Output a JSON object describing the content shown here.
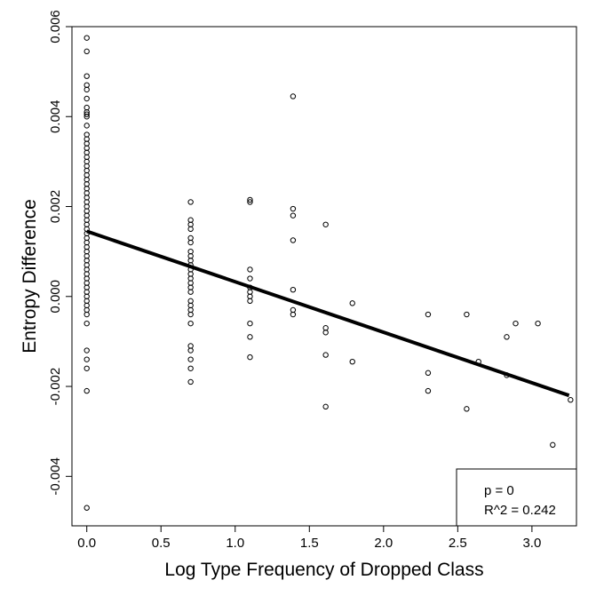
{
  "chart_data": {
    "type": "scatter",
    "title": "",
    "xlabel": "Log Type Frequency of Dropped Class",
    "ylabel": "Entropy Difference",
    "xlim": [
      -0.1,
      3.3
    ],
    "ylim": [
      -0.0051,
      0.006
    ],
    "x_ticks": [
      0.0,
      0.5,
      1.0,
      1.5,
      2.0,
      2.5,
      3.0
    ],
    "x_tick_labels": [
      "0.0",
      "0.5",
      "1.0",
      "1.5",
      "2.0",
      "2.5",
      "3.0"
    ],
    "y_ticks": [
      -0.004,
      -0.002,
      0.0,
      0.002,
      0.004,
      0.006
    ],
    "y_tick_labels": [
      "-0.004",
      "-0.002",
      "0.000",
      "0.002",
      "0.004",
      "0.006"
    ],
    "grid": false,
    "regression_line": {
      "x": [
        0.0,
        3.25
      ],
      "y": [
        0.00145,
        -0.0022
      ]
    },
    "annotation": {
      "p_text": "p = 0",
      "r2_text": "R^2 = 0.242",
      "position": "bottom-right"
    },
    "series": [
      {
        "points": [
          [
            0.0,
            0.00575
          ],
          [
            0.0,
            0.00545
          ],
          [
            0.0,
            0.0049
          ],
          [
            0.0,
            0.0047
          ],
          [
            0.0,
            0.0046
          ],
          [
            0.0,
            0.0044
          ],
          [
            0.0,
            0.0042
          ],
          [
            0.0,
            0.0041
          ],
          [
            0.0,
            0.00405
          ],
          [
            0.0,
            0.004
          ],
          [
            0.0,
            0.0038
          ],
          [
            0.0,
            0.0036
          ],
          [
            0.0,
            0.0035
          ],
          [
            0.0,
            0.0034
          ],
          [
            0.0,
            0.0033
          ],
          [
            0.0,
            0.0032
          ],
          [
            0.0,
            0.0031
          ],
          [
            0.0,
            0.003
          ],
          [
            0.0,
            0.0029
          ],
          [
            0.0,
            0.0028
          ],
          [
            0.0,
            0.0027
          ],
          [
            0.0,
            0.0026
          ],
          [
            0.0,
            0.0025
          ],
          [
            0.0,
            0.0024
          ],
          [
            0.0,
            0.0023
          ],
          [
            0.0,
            0.0022
          ],
          [
            0.0,
            0.0021
          ],
          [
            0.0,
            0.002
          ],
          [
            0.0,
            0.0019
          ],
          [
            0.0,
            0.0018
          ],
          [
            0.0,
            0.0017
          ],
          [
            0.0,
            0.0016
          ],
          [
            0.0,
            0.0015
          ],
          [
            0.0,
            0.0014
          ],
          [
            0.0,
            0.0013
          ],
          [
            0.0,
            0.0012
          ],
          [
            0.0,
            0.0011
          ],
          [
            0.0,
            0.001
          ],
          [
            0.0,
            0.0009
          ],
          [
            0.0,
            0.0008
          ],
          [
            0.0,
            0.0007
          ],
          [
            0.0,
            0.0006
          ],
          [
            0.0,
            0.0005
          ],
          [
            0.0,
            0.0004
          ],
          [
            0.0,
            0.0003
          ],
          [
            0.0,
            0.0002
          ],
          [
            0.0,
            0.0001
          ],
          [
            0.0,
            0.0
          ],
          [
            0.0,
            -0.0001
          ],
          [
            0.0,
            -0.0002
          ],
          [
            0.0,
            -0.0003
          ],
          [
            0.0,
            -0.0004
          ],
          [
            0.0,
            -0.0006
          ],
          [
            0.0,
            -0.0012
          ],
          [
            0.0,
            -0.0014
          ],
          [
            0.0,
            -0.0016
          ],
          [
            0.0,
            -0.0021
          ],
          [
            0.0,
            -0.0047
          ],
          [
            0.7,
            0.0021
          ],
          [
            0.7,
            0.0017
          ],
          [
            0.7,
            0.0016
          ],
          [
            0.7,
            0.0015
          ],
          [
            0.7,
            0.0013
          ],
          [
            0.7,
            0.0012
          ],
          [
            0.7,
            0.001
          ],
          [
            0.7,
            0.0009
          ],
          [
            0.7,
            0.0008
          ],
          [
            0.7,
            0.0007
          ],
          [
            0.7,
            0.0006
          ],
          [
            0.7,
            0.0005
          ],
          [
            0.7,
            0.0004
          ],
          [
            0.7,
            0.0003
          ],
          [
            0.7,
            0.0002
          ],
          [
            0.7,
            0.0001
          ],
          [
            0.7,
            -0.0001
          ],
          [
            0.7,
            -0.0002
          ],
          [
            0.7,
            -0.0003
          ],
          [
            0.7,
            -0.0004
          ],
          [
            0.7,
            -0.0006
          ],
          [
            0.7,
            -0.0011
          ],
          [
            0.7,
            -0.0012
          ],
          [
            0.7,
            -0.0014
          ],
          [
            0.7,
            -0.0016
          ],
          [
            0.7,
            -0.0019
          ],
          [
            1.1,
            0.00215
          ],
          [
            1.1,
            0.0021
          ],
          [
            1.1,
            0.0006
          ],
          [
            1.1,
            0.0004
          ],
          [
            1.1,
            0.0002
          ],
          [
            1.1,
            0.0001
          ],
          [
            1.1,
            0.0
          ],
          [
            1.1,
            -0.0001
          ],
          [
            1.1,
            -0.0006
          ],
          [
            1.1,
            -0.0009
          ],
          [
            1.1,
            -0.00135
          ],
          [
            1.39,
            0.00445
          ],
          [
            1.39,
            0.00195
          ],
          [
            1.39,
            0.0018
          ],
          [
            1.39,
            0.00125
          ],
          [
            1.39,
            0.00015
          ],
          [
            1.39,
            -0.0003
          ],
          [
            1.39,
            -0.0004
          ],
          [
            1.61,
            0.0016
          ],
          [
            1.61,
            -0.0007
          ],
          [
            1.61,
            -0.0008
          ],
          [
            1.61,
            -0.0013
          ],
          [
            1.61,
            -0.00245
          ],
          [
            1.79,
            -0.00015
          ],
          [
            1.79,
            -0.00145
          ],
          [
            2.3,
            -0.0004
          ],
          [
            2.3,
            -0.0017
          ],
          [
            2.3,
            -0.0021
          ],
          [
            2.56,
            -0.0004
          ],
          [
            2.56,
            -0.0025
          ],
          [
            2.64,
            -0.00145
          ],
          [
            2.83,
            -0.0009
          ],
          [
            2.83,
            -0.00175
          ],
          [
            2.89,
            -0.0006
          ],
          [
            3.04,
            -0.0006
          ],
          [
            3.14,
            -0.0033
          ],
          [
            3.26,
            -0.0023
          ]
        ]
      }
    ]
  }
}
